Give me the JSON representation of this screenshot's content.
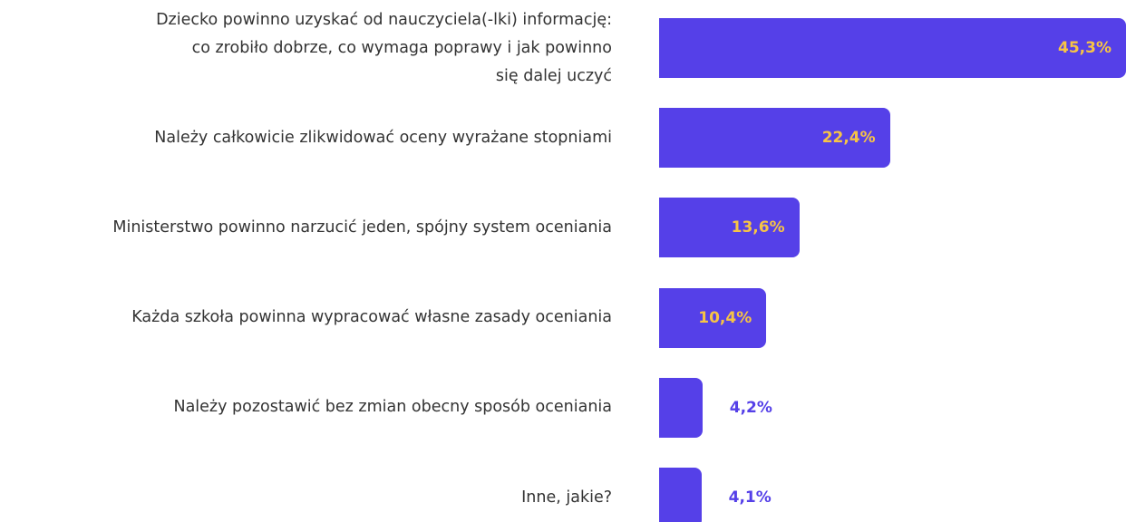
{
  "chart_data": {
    "type": "barh",
    "categories": [
      "Dziecko powinno uzyskać od nauczyciela(-lki) informację:\nco zrobiło dobrze, co wymaga poprawy i jak powinno\nsię dalej uczyć",
      "Należy całkowicie zlikwidować oceny wyrażane stopniami",
      "Ministerstwo powinno narzucić jeden, spójny system oceniania",
      "Każda szkoła powinna wypracować własne zasady oceniania",
      "Należy pozostawić bez zmian obecny sposób oceniania",
      "Inne, jakie?"
    ],
    "values": [
      45.3,
      22.4,
      13.6,
      10.4,
      4.2,
      4.1
    ],
    "value_labels": [
      "45,3%",
      "22,4%",
      "13,6%",
      "10,4%",
      "4,2%",
      "4,1%"
    ],
    "color": "#5540e8",
    "label_color_inside": "#f7c445",
    "label_color_outside": "#5540e8"
  }
}
